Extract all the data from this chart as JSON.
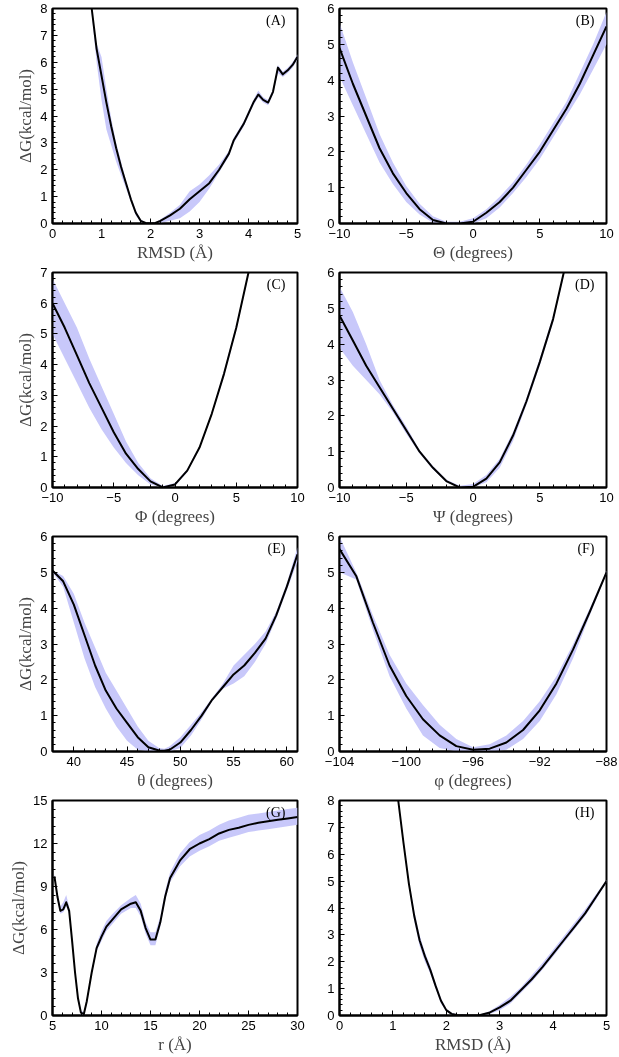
{
  "chart_data": [
    {
      "type": "line",
      "xlabel": "RMSD (Å)",
      "ylabel": "ΔG(kcal/mol)",
      "annotations": [
        "(A)"
      ],
      "xlim": [
        0,
        5
      ],
      "ylim": [
        0,
        8
      ],
      "xticks": [
        0,
        1,
        2,
        3,
        4,
        5
      ],
      "yticks": [
        0,
        1,
        2,
        3,
        4,
        5,
        6,
        7,
        8
      ],
      "grid": false,
      "x": [
        0.8,
        0.9,
        1.0,
        1.1,
        1.2,
        1.3,
        1.4,
        1.5,
        1.6,
        1.7,
        1.8,
        1.9,
        2.0,
        2.1,
        2.2,
        2.4,
        2.6,
        2.8,
        3.0,
        3.2,
        3.4,
        3.6,
        3.7,
        3.9,
        4.0,
        4.1,
        4.2,
        4.3,
        4.4,
        4.5,
        4.6,
        4.7,
        4.8,
        4.9,
        5.0
      ],
      "series": [
        {
          "color": "#000000",
          "values": [
            8,
            6.5,
            5.5,
            4.5,
            3.6,
            2.8,
            2.1,
            1.5,
            0.9,
            0.4,
            0.1,
            0.02,
            0,
            0.02,
            0.1,
            0.3,
            0.55,
            0.9,
            1.2,
            1.5,
            2.0,
            2.6,
            3.1,
            3.7,
            4.1,
            4.5,
            4.8,
            4.6,
            4.5,
            4.9,
            5.8,
            5.55,
            5.7,
            5.9,
            6.2
          ],
          "lower": [
            7.8,
            6.0,
            4.6,
            3.5,
            2.9,
            2.3,
            1.8,
            1.3,
            0.8,
            0.3,
            0.05,
            0,
            0,
            0,
            0.02,
            0.1,
            0.2,
            0.45,
            0.8,
            1.3,
            1.9,
            2.5,
            3.0,
            3.6,
            4.0,
            4.4,
            4.7,
            4.5,
            4.4,
            4.8,
            5.6,
            5.45,
            5.6,
            5.8,
            6.1
          ],
          "upper": [
            8,
            6.7,
            6.2,
            5.0,
            3.9,
            3.0,
            2.3,
            1.6,
            1.0,
            0.5,
            0.15,
            0.05,
            0.02,
            0.05,
            0.15,
            0.4,
            0.7,
            1.2,
            1.45,
            1.8,
            2.2,
            2.7,
            3.2,
            3.8,
            4.2,
            4.6,
            4.95,
            4.7,
            4.6,
            5.0,
            5.9,
            5.65,
            5.8,
            6.0,
            6.3
          ]
        }
      ]
    },
    {
      "type": "line",
      "xlabel": "Θ (degrees)",
      "annotations": [
        "(B)"
      ],
      "xlim": [
        -10,
        10
      ],
      "ylim": [
        0,
        6
      ],
      "xticks": [
        -10,
        -5,
        0,
        5,
        10
      ],
      "yticks": [
        0,
        1,
        2,
        3,
        4,
        5,
        6
      ],
      "grid": false,
      "x": [
        -10,
        -9,
        -8,
        -7,
        -6,
        -5,
        -4,
        -3,
        -2,
        -1,
        0,
        1,
        2,
        3,
        4,
        5,
        6,
        7,
        8,
        9,
        10
      ],
      "series": [
        {
          "color": "#000000",
          "values": [
            4.9,
            3.9,
            3.0,
            2.1,
            1.4,
            0.85,
            0.4,
            0.1,
            0,
            0,
            0.05,
            0.3,
            0.6,
            1.0,
            1.5,
            2.0,
            2.6,
            3.2,
            3.9,
            4.7,
            5.5
          ],
          "lower": [
            4.1,
            3.3,
            2.5,
            1.7,
            1.1,
            0.6,
            0.25,
            0.02,
            0,
            0,
            0,
            0.15,
            0.45,
            0.85,
            1.3,
            1.8,
            2.4,
            3.0,
            3.6,
            4.3,
            5.0
          ],
          "upper": [
            5.6,
            4.5,
            3.5,
            2.5,
            1.7,
            1.05,
            0.55,
            0.2,
            0.05,
            0.05,
            0.15,
            0.4,
            0.75,
            1.15,
            1.65,
            2.2,
            2.8,
            3.4,
            4.2,
            5.0,
            5.9
          ]
        }
      ]
    },
    {
      "type": "line",
      "xlabel": "Φ (degrees)",
      "ylabel": "ΔG(kcal/mol)",
      "annotations": [
        "(C)"
      ],
      "xlim": [
        -10,
        10
      ],
      "ylim": [
        0,
        7
      ],
      "xticks": [
        -10,
        -5,
        0,
        5,
        10
      ],
      "yticks": [
        0,
        1,
        2,
        3,
        4,
        5,
        6,
        7
      ],
      "grid": false,
      "x": [
        -10,
        -9,
        -8,
        -7,
        -6,
        -5,
        -4,
        -3,
        -2,
        -1,
        0,
        1,
        2,
        3,
        4,
        5,
        6
      ],
      "series": [
        {
          "color": "#000000",
          "values": [
            6.0,
            5.2,
            4.3,
            3.4,
            2.6,
            1.8,
            1.1,
            0.6,
            0.2,
            0,
            0.1,
            0.55,
            1.3,
            2.4,
            3.7,
            5.2,
            7.0
          ],
          "lower": [
            5.0,
            4.2,
            3.4,
            2.6,
            1.9,
            1.3,
            0.8,
            0.4,
            0.1,
            0,
            0.05,
            0.5,
            1.25,
            2.35,
            3.6,
            5.1,
            6.9
          ],
          "upper": [
            6.8,
            6.0,
            5.2,
            4.2,
            3.3,
            2.4,
            1.5,
            0.8,
            0.3,
            0.05,
            0.15,
            0.6,
            1.35,
            2.45,
            3.8,
            5.3,
            7.0
          ]
        }
      ]
    },
    {
      "type": "line",
      "xlabel": "Ψ (degrees)",
      "annotations": [
        "(D)"
      ],
      "xlim": [
        -10,
        10
      ],
      "ylim": [
        0,
        6
      ],
      "xticks": [
        -10,
        -5,
        0,
        5,
        10
      ],
      "yticks": [
        0,
        1,
        2,
        3,
        4,
        5,
        6
      ],
      "grid": false,
      "x": [
        -10,
        -9,
        -8,
        -7,
        -6,
        -5,
        -4,
        -3,
        -2,
        -1,
        0,
        1,
        2,
        3,
        4,
        5,
        6,
        6.8
      ],
      "series": [
        {
          "color": "#000000",
          "values": [
            4.8,
            4.1,
            3.4,
            2.8,
            2.2,
            1.6,
            1.0,
            0.55,
            0.18,
            0,
            0.02,
            0.25,
            0.7,
            1.45,
            2.4,
            3.5,
            4.7,
            6.0
          ],
          "lower": [
            3.9,
            3.4,
            3.0,
            2.6,
            2.1,
            1.5,
            0.95,
            0.5,
            0.15,
            0,
            0,
            0.15,
            0.55,
            1.3,
            2.3,
            3.4,
            4.6,
            5.9
          ],
          "upper": [
            5.6,
            4.9,
            4.0,
            3.0,
            2.3,
            1.7,
            1.05,
            0.6,
            0.22,
            0.05,
            0.1,
            0.35,
            0.8,
            1.55,
            2.5,
            3.6,
            4.8,
            6.0
          ]
        }
      ]
    },
    {
      "type": "line",
      "xlabel": "θ (degrees)",
      "ylabel": "ΔG(kcal/mol)",
      "annotations": [
        "(E)"
      ],
      "xlim": [
        38,
        61
      ],
      "ylim": [
        0,
        6
      ],
      "xticks": [
        40,
        45,
        50,
        55,
        60
      ],
      "yticks": [
        0,
        1,
        2,
        3,
        4,
        5,
        6
      ],
      "grid": false,
      "x": [
        38,
        39,
        40,
        41,
        42,
        43,
        44,
        45,
        46,
        47,
        48,
        48.5,
        49,
        50,
        51,
        52,
        53,
        54,
        55,
        56,
        57,
        58,
        59,
        60,
        61
      ],
      "series": [
        {
          "color": "#000000",
          "values": [
            5.05,
            4.75,
            4.1,
            3.25,
            2.4,
            1.7,
            1.2,
            0.8,
            0.4,
            0.12,
            0.03,
            0.02,
            0.05,
            0.25,
            0.6,
            1.0,
            1.45,
            1.8,
            2.15,
            2.4,
            2.75,
            3.15,
            3.8,
            4.6,
            5.5
          ],
          "lower": [
            5.0,
            4.6,
            3.6,
            2.6,
            1.8,
            1.2,
            0.7,
            0.3,
            0.05,
            0,
            0,
            0,
            0,
            0.1,
            0.45,
            0.9,
            1.4,
            1.75,
            1.9,
            2.1,
            2.5,
            3.0,
            3.7,
            4.5,
            5.3
          ],
          "upper": [
            5.05,
            4.9,
            4.4,
            3.6,
            2.9,
            2.2,
            1.7,
            1.2,
            0.7,
            0.3,
            0.1,
            0.08,
            0.15,
            0.4,
            0.75,
            1.1,
            1.5,
            1.9,
            2.4,
            2.7,
            3.0,
            3.35,
            3.9,
            4.7,
            5.7
          ]
        }
      ]
    },
    {
      "type": "line",
      "xlabel": "φ (degrees)",
      "annotations": [
        "(F)"
      ],
      "xlim": [
        -104,
        -88
      ],
      "ylim": [
        0,
        6
      ],
      "xticks": [
        -104,
        -100,
        -96,
        -92,
        -88
      ],
      "yticks": [
        0,
        1,
        2,
        3,
        4,
        5,
        6
      ],
      "grid": false,
      "x": [
        -104,
        -103,
        -102,
        -101,
        -100,
        -99,
        -98,
        -97,
        -96,
        -95,
        -94,
        -93,
        -92,
        -91,
        -90,
        -89,
        -88
      ],
      "series": [
        {
          "color": "#000000",
          "values": [
            5.65,
            4.9,
            3.6,
            2.4,
            1.55,
            0.9,
            0.45,
            0.15,
            0.05,
            0.08,
            0.25,
            0.6,
            1.15,
            1.9,
            2.85,
            3.9,
            5.0
          ],
          "lower": [
            5.0,
            4.8,
            3.4,
            2.1,
            1.2,
            0.45,
            0.1,
            0,
            0,
            0,
            0.05,
            0.35,
            0.85,
            1.6,
            2.6,
            3.8,
            4.95
          ],
          "upper": [
            6.0,
            5.0,
            3.8,
            2.7,
            1.9,
            1.3,
            0.75,
            0.35,
            0.12,
            0.2,
            0.45,
            0.85,
            1.4,
            2.1,
            3.0,
            4.0,
            5.05
          ]
        }
      ]
    },
    {
      "type": "line",
      "xlabel": "r (Å)",
      "ylabel": "ΔG(kcal/mol)",
      "annotations": [
        "(G)"
      ],
      "xlim": [
        5,
        30
      ],
      "ylim": [
        0,
        15
      ],
      "xticks": [
        5,
        10,
        15,
        20,
        25,
        30
      ],
      "yticks": [
        0,
        3,
        6,
        9,
        12,
        15
      ],
      "grid": false,
      "x": [
        5.2,
        5.5,
        5.8,
        6.1,
        6.4,
        6.7,
        7,
        7.3,
        7.6,
        7.9,
        8.2,
        8.5,
        9,
        9.5,
        10,
        10.5,
        11,
        12,
        13,
        13.5,
        14,
        14.5,
        15,
        15.5,
        16,
        16.5,
        17,
        18,
        19,
        20,
        21,
        22,
        23,
        24,
        25,
        26,
        27,
        28,
        29,
        30
      ],
      "series": [
        {
          "color": "#000000",
          "values": [
            9.7,
            8.3,
            7.3,
            7.4,
            7.9,
            7.3,
            5.2,
            3.0,
            1.2,
            0.2,
            0.1,
            1.0,
            3.0,
            4.7,
            5.5,
            6.2,
            6.6,
            7.4,
            7.8,
            7.9,
            7.3,
            6.1,
            5.3,
            5.3,
            6.5,
            8.3,
            9.6,
            10.8,
            11.6,
            12.0,
            12.3,
            12.7,
            12.95,
            13.1,
            13.3,
            13.45,
            13.55,
            13.65,
            13.75,
            13.85
          ],
          "lower": [
            9.5,
            8.1,
            7.1,
            7.2,
            7.6,
            7.1,
            5.0,
            2.8,
            1.0,
            0.05,
            0,
            0.8,
            2.8,
            4.5,
            5.2,
            5.9,
            6.3,
            7.1,
            7.5,
            7.5,
            6.9,
            5.7,
            4.9,
            4.9,
            6.2,
            8.0,
            9.3,
            10.4,
            11.1,
            11.5,
            11.8,
            12.2,
            12.4,
            12.6,
            12.8,
            12.9,
            13.0,
            13.1,
            13.2,
            13.3
          ],
          "upper": [
            9.9,
            8.5,
            7.6,
            7.9,
            8.4,
            7.6,
            5.4,
            3.2,
            1.4,
            0.35,
            0.25,
            1.2,
            3.2,
            5.0,
            5.9,
            6.6,
            7.0,
            7.7,
            8.2,
            8.4,
            7.8,
            6.5,
            5.8,
            5.8,
            6.9,
            8.7,
            10.0,
            11.3,
            12.1,
            12.6,
            12.9,
            13.3,
            13.6,
            13.8,
            14.0,
            14.1,
            14.2,
            14.3,
            14.4,
            14.5
          ]
        }
      ]
    },
    {
      "type": "line",
      "xlabel": "RMSD (Å)",
      "annotations": [
        "(H)"
      ],
      "xlim": [
        0,
        5
      ],
      "ylim": [
        0,
        8
      ],
      "xticks": [
        0,
        1,
        2,
        3,
        4,
        5
      ],
      "yticks": [
        0,
        1,
        2,
        3,
        4,
        5,
        6,
        7,
        8
      ],
      "grid": false,
      "x": [
        1.1,
        1.2,
        1.3,
        1.4,
        1.5,
        1.6,
        1.7,
        1.8,
        1.9,
        2.0,
        2.1,
        2.2,
        2.4,
        2.6,
        2.8,
        3.0,
        3.2,
        3.4,
        3.6,
        3.8,
        4.0,
        4.2,
        4.4,
        4.6,
        4.8,
        5.0
      ],
      "series": [
        {
          "color": "#000000",
          "values": [
            8,
            6.4,
            4.9,
            3.7,
            2.8,
            2.2,
            1.7,
            1.1,
            0.55,
            0.2,
            0.06,
            0.02,
            0,
            0,
            0.1,
            0.3,
            0.55,
            0.95,
            1.35,
            1.8,
            2.3,
            2.8,
            3.3,
            3.8,
            4.4,
            5.0
          ],
          "lower": [
            7.9,
            6.3,
            4.8,
            3.5,
            2.6,
            2.0,
            1.55,
            1.0,
            0.45,
            0.15,
            0.03,
            0,
            0,
            0,
            0.05,
            0.2,
            0.45,
            0.85,
            1.25,
            1.7,
            2.2,
            2.7,
            3.2,
            3.7,
            4.3,
            4.95
          ],
          "upper": [
            8,
            6.5,
            5.0,
            3.9,
            3.0,
            2.35,
            1.85,
            1.2,
            0.65,
            0.25,
            0.1,
            0.05,
            0.02,
            0.02,
            0.15,
            0.4,
            0.7,
            1.05,
            1.5,
            1.95,
            2.45,
            2.95,
            3.45,
            3.95,
            4.5,
            5.05
          ]
        }
      ]
    }
  ]
}
